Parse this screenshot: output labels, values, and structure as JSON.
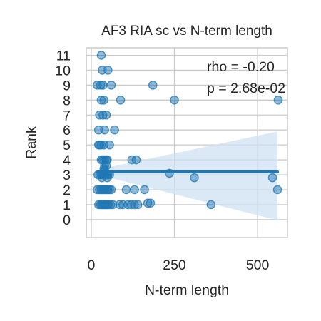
{
  "chart_data": {
    "type": "scatter",
    "title": "AF3 RIA sc vs N-term length",
    "xlabel": "N-term length",
    "ylabel": "Rank",
    "xlim": [
      -15,
      590
    ],
    "ylim": [
      -1.2,
      11.5
    ],
    "xticks": [
      0,
      250,
      500
    ],
    "yticks": [
      0,
      1,
      2,
      3,
      4,
      5,
      6,
      7,
      8,
      9,
      10,
      11
    ],
    "grid": true,
    "annotations": [
      "rho = -0.20",
      "p = 2.68e-02"
    ],
    "colors": {
      "points": "#1f77b4",
      "line": "#1f77b4",
      "band": "#cfe0f1",
      "grid": "#cccccc",
      "spine": "#cccccc"
    },
    "regression": {
      "x": [
        20,
        560
      ],
      "y": [
        3.2,
        3.2
      ],
      "ci_upper": [
        3.35,
        5.9
      ],
      "ci_lower": [
        3.0,
        -0.05
      ]
    },
    "points": {
      "x": [
        30,
        33,
        50,
        18,
        28,
        35,
        60,
        185,
        30,
        38,
        88,
        250,
        562,
        25,
        35,
        45,
        22,
        40,
        70,
        25,
        38,
        55,
        22,
        30,
        40,
        48,
        35,
        45,
        30,
        122,
        135,
        40,
        45,
        40,
        38,
        20,
        25,
        30,
        35,
        38,
        42,
        46,
        50,
        55,
        32,
        48,
        235,
        310,
        545,
        18,
        25,
        30,
        35,
        40,
        45,
        50,
        55,
        60,
        105,
        130,
        160,
        560,
        22,
        28,
        32,
        36,
        40,
        44,
        48,
        52,
        58,
        65,
        85,
        95,
        110,
        120,
        130,
        140,
        170,
        178,
        360
      ],
      "y": [
        11,
        10,
        10,
        9,
        9,
        9,
        9,
        9,
        8,
        8,
        8,
        8,
        8,
        7,
        7,
        7,
        6,
        6,
        6,
        5,
        5,
        5,
        5,
        5,
        4,
        4,
        4,
        4,
        4,
        4,
        4,
        3.6,
        3.6,
        3.3,
        3.4,
        3,
        3,
        3,
        3,
        3,
        3,
        3,
        3,
        3,
        2.8,
        2.8,
        3.1,
        2.8,
        2.8,
        2,
        2,
        2,
        2,
        2,
        2,
        2,
        2,
        2,
        2,
        2,
        2,
        2,
        1,
        1,
        1,
        1,
        1,
        1,
        1,
        1,
        1,
        1,
        1,
        1,
        1,
        1,
        1,
        1,
        1.1,
        1.1,
        1
      ]
    }
  }
}
